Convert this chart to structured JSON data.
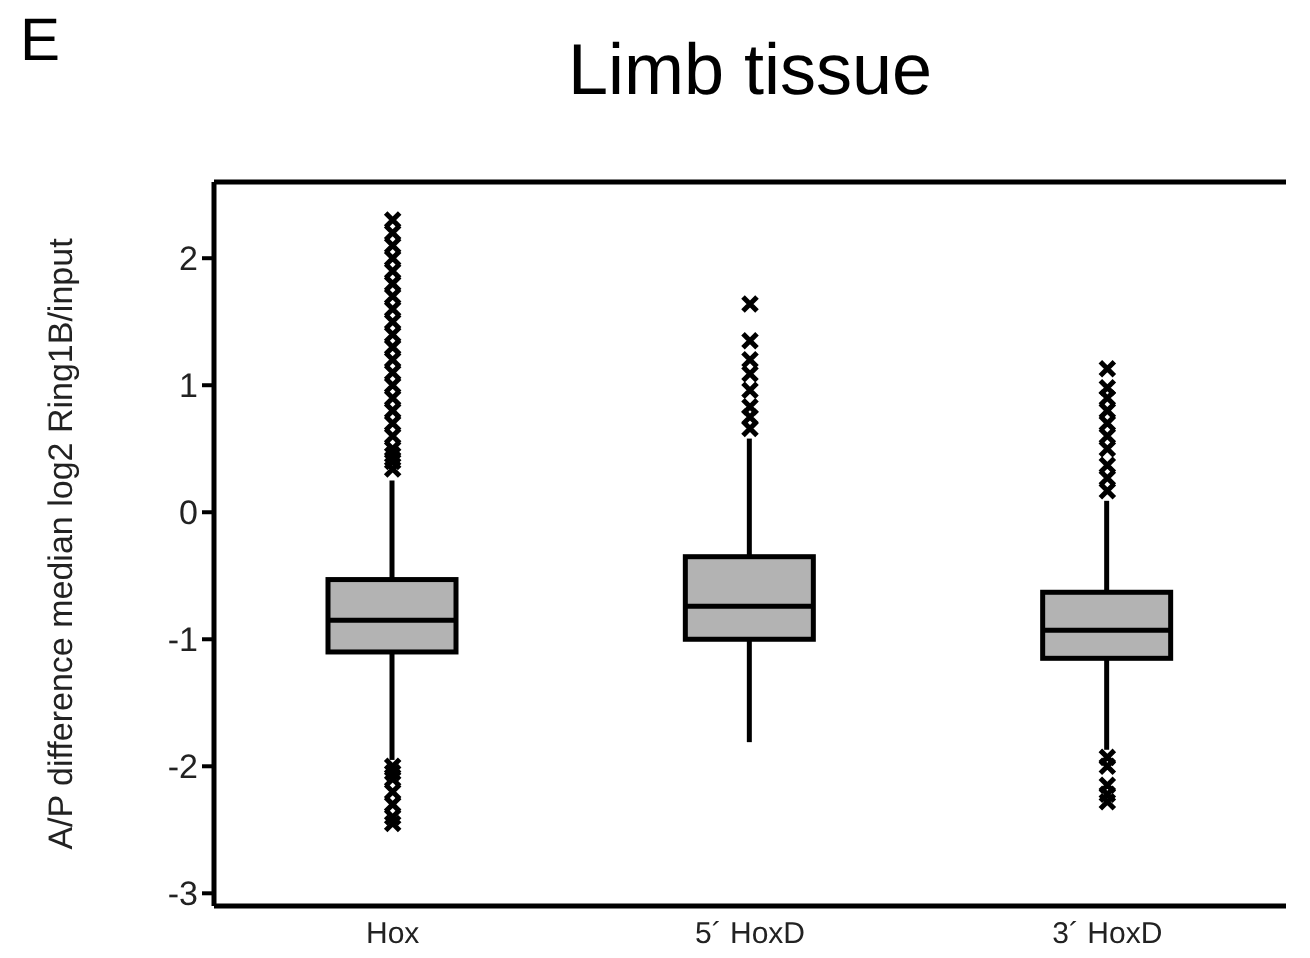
{
  "chart_data": {
    "type": "box",
    "title": "Limb tissue",
    "ylabel": "A/P difference median log2 Ring1B/input",
    "annotations": [
      "E"
    ],
    "categories": [
      "Hox",
      "5´ HoxD",
      "3´ HoxD"
    ],
    "boxes": [
      {
        "low": -1.95,
        "q1": -1.1,
        "median": -0.85,
        "q3": -0.53,
        "high": 0.25,
        "outliers": [
          0.34,
          0.4,
          0.45,
          0.5,
          0.6,
          0.7,
          0.8,
          0.9,
          1.0,
          1.1,
          1.2,
          1.3,
          1.4,
          1.5,
          1.6,
          1.7,
          1.8,
          1.9,
          2.0,
          2.1,
          2.2,
          2.3,
          -2.0,
          -2.05,
          -2.1,
          -2.2,
          -2.3,
          -2.4,
          -2.45
        ]
      },
      {
        "low": -1.81,
        "q1": -1.0,
        "median": -0.74,
        "q3": -0.35,
        "high": 0.58,
        "outliers": [
          0.66,
          0.75,
          0.83,
          0.96,
          1.09,
          1.2,
          1.35,
          1.64
        ]
      },
      {
        "low": -1.87,
        "q1": -1.15,
        "median": -0.93,
        "q3": -0.63,
        "high": 0.09,
        "outliers": [
          0.17,
          0.27,
          0.37,
          0.5,
          0.6,
          0.7,
          0.8,
          0.9,
          0.98,
          1.13,
          -1.93,
          -2.0,
          -2.15,
          -2.22,
          -2.28
        ]
      }
    ],
    "color": "#b3b3b3",
    "marker": "cross",
    "grid": false,
    "legend": false,
    "ylim": [
      -3.1,
      2.6
    ],
    "yticks": [
      -3,
      -2,
      -1,
      0,
      1,
      2
    ]
  }
}
